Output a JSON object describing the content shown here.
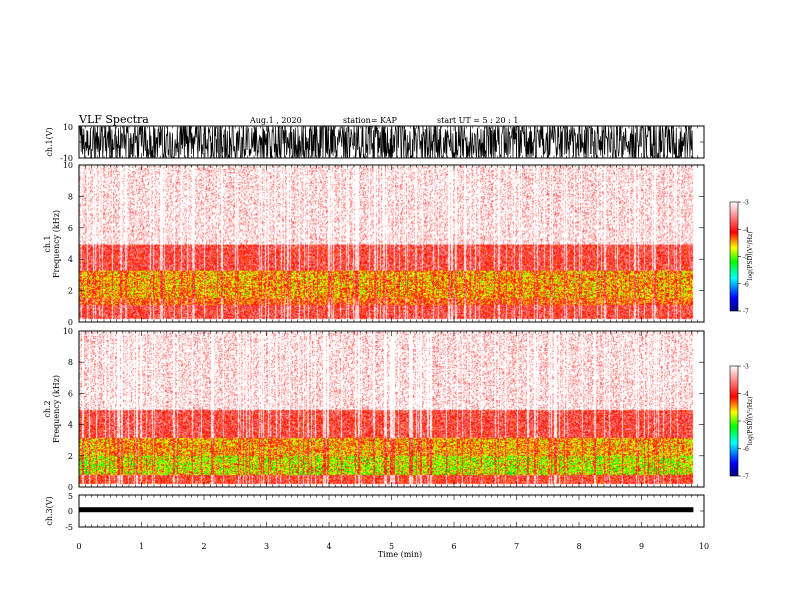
{
  "header": {
    "title": "VLF Spectra",
    "date": "Aug.1  , 2020",
    "station": "station= KAP",
    "start_ut": "start  UT  =   5  : 20 : 1"
  },
  "chart_data": [
    {
      "type": "line",
      "name": "ch1-waveform",
      "ylabel": "ch.1(V)",
      "ylim": [
        -10,
        10
      ],
      "yticks": [
        "10",
        "-10"
      ],
      "xlim": [
        0,
        10
      ],
      "data_end_min": 9.83
    },
    {
      "type": "heatmap",
      "name": "ch1-spectrogram",
      "ylabel_line1": "ch.1",
      "ylabel_line2": "Frequency  (kHz)",
      "ylim": [
        0,
        10
      ],
      "yticks": [
        "0",
        "2",
        "4",
        "6",
        "8",
        "10"
      ],
      "xlim": [
        0,
        10
      ],
      "data_end_min": 9.83,
      "bands_khz": [
        {
          "from": 0.2,
          "to": 1.1,
          "log_psd": -3.9
        },
        {
          "from": 1.1,
          "to": 1.6,
          "log_psd": -4.3
        },
        {
          "from": 1.6,
          "to": 3.3,
          "log_psd": -4.6
        },
        {
          "from": 3.3,
          "to": 5.0,
          "log_psd": -3.9
        },
        {
          "from": 5.0,
          "to": 10.0,
          "log_psd": -3.3
        }
      ],
      "colorbar": {
        "label": "log(PSD)(V²/Hz)",
        "range": [
          -7,
          -3
        ],
        "ticks": [
          "-3",
          "-4",
          "-5",
          "-6",
          "-7"
        ]
      }
    },
    {
      "type": "heatmap",
      "name": "ch2-spectrogram",
      "ylabel_line1": "ch.2",
      "ylabel_line2": "Frequency  (kHz)",
      "ylim": [
        0,
        10
      ],
      "yticks": [
        "0",
        "2",
        "4",
        "6",
        "8",
        "10"
      ],
      "xlim": [
        0,
        10
      ],
      "data_end_min": 9.83,
      "bands_khz": [
        {
          "from": 0.2,
          "to": 0.8,
          "log_psd": -4.0
        },
        {
          "from": 0.8,
          "to": 2.0,
          "log_psd": -4.9
        },
        {
          "from": 2.0,
          "to": 3.2,
          "log_psd": -4.6
        },
        {
          "from": 3.2,
          "to": 5.0,
          "log_psd": -3.9
        },
        {
          "from": 5.0,
          "to": 10.0,
          "log_psd": -3.3
        }
      ],
      "colorbar": {
        "label": "log(PSD)(V²/Hz)",
        "range": [
          -7,
          -3
        ],
        "ticks": [
          "-3",
          "-4",
          "-5",
          "-6",
          "-7"
        ]
      }
    },
    {
      "type": "line",
      "name": "ch3-waveform",
      "ylabel": "ch.3(V)",
      "ylim": [
        -5,
        5
      ],
      "yticks": [
        "5",
        "0",
        "-5"
      ],
      "xlim": [
        0,
        10
      ],
      "data_end_min": 9.83,
      "level_v": 0.4
    }
  ],
  "x_axis": {
    "label": "Time  (min)",
    "ticks": [
      "0",
      "1",
      "2",
      "3",
      "4",
      "5",
      "6",
      "7",
      "8",
      "9",
      "10"
    ]
  },
  "colors": {
    "frame": "#000000",
    "colormap": [
      "#00007f",
      "#0000ff",
      "#00ffff",
      "#00ff00",
      "#ffff00",
      "#ff0000",
      "#ffffff"
    ]
  }
}
